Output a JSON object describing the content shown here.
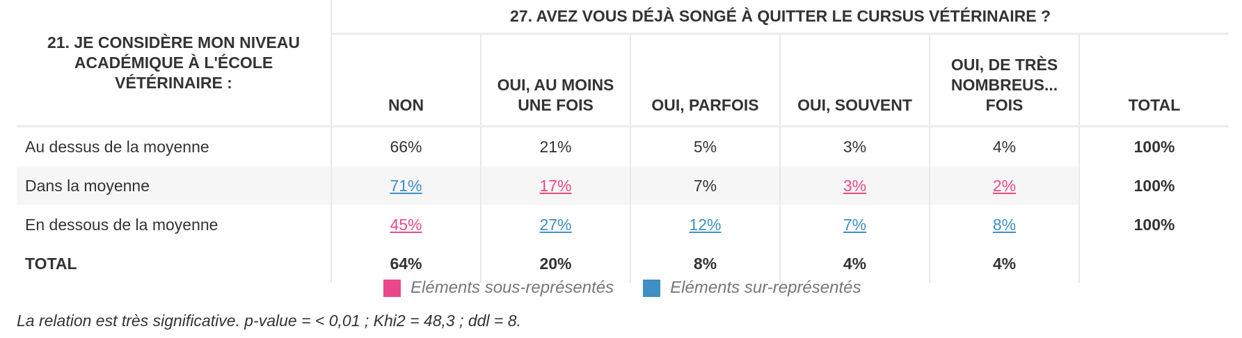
{
  "table": {
    "col_var_title": "27. AVEZ VOUS DÉJÀ SONGÉ À QUITTER LE CURSUS VÉTÉRINAIRE ?",
    "row_var_title": "21. JE CONSIDÈRE MON NIVEAU ACADÉMIQUE À L'ÉCOLE VÉTÉRINAIRE :",
    "columns": [
      "NON",
      "OUI, AU MOINS UNE FOIS",
      "OUI, PARFOIS",
      "OUI, SOUVENT",
      "OUI, DE TRÈS NOMBREUS... FOIS",
      "TOTAL"
    ],
    "rows": [
      {
        "label": "Au dessus de la moyenne",
        "cells": [
          {
            "value": "66%",
            "status": "normal"
          },
          {
            "value": "21%",
            "status": "normal"
          },
          {
            "value": "5%",
            "status": "normal"
          },
          {
            "value": "3%",
            "status": "normal"
          },
          {
            "value": "4%",
            "status": "normal"
          },
          {
            "value": "100%",
            "status": "total"
          }
        ]
      },
      {
        "label": "Dans la moyenne",
        "cells": [
          {
            "value": "71%",
            "status": "over"
          },
          {
            "value": "17%",
            "status": "under"
          },
          {
            "value": "7%",
            "status": "normal"
          },
          {
            "value": "3%",
            "status": "under"
          },
          {
            "value": "2%",
            "status": "under"
          },
          {
            "value": "100%",
            "status": "total"
          }
        ]
      },
      {
        "label": "En dessous de la moyenne",
        "cells": [
          {
            "value": "45%",
            "status": "under"
          },
          {
            "value": "27%",
            "status": "over"
          },
          {
            "value": "12%",
            "status": "over"
          },
          {
            "value": "7%",
            "status": "over"
          },
          {
            "value": "8%",
            "status": "over"
          },
          {
            "value": "100%",
            "status": "total"
          }
        ]
      },
      {
        "label": "TOTAL",
        "cells": [
          {
            "value": "64%",
            "status": "total"
          },
          {
            "value": "20%",
            "status": "total"
          },
          {
            "value": "8%",
            "status": "total"
          },
          {
            "value": "4%",
            "status": "total"
          },
          {
            "value": "4%",
            "status": "total"
          },
          {
            "value": "",
            "status": "total"
          }
        ]
      }
    ]
  },
  "legend": {
    "under_label": "Eléments sous-représentés",
    "over_label": "Eléments sur-représentés",
    "under_color": "#e8488a",
    "over_color": "#3d8fc4"
  },
  "note": "La relation est très significative. p-value = < 0,01 ; Khi2 = 48,3 ; ddl = 8."
}
